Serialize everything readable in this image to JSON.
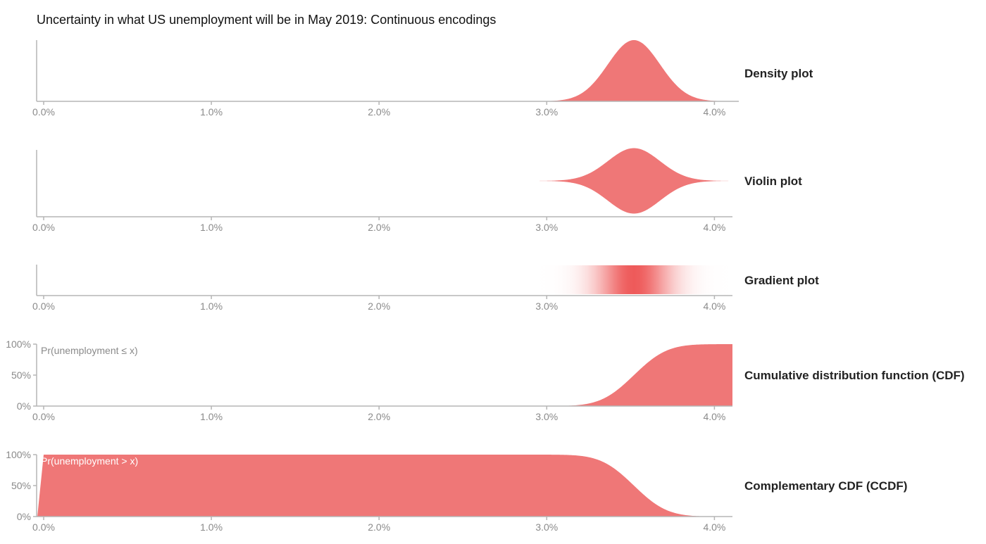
{
  "title": "Uncertainty in what US unemployment will be in May 2019: Continuous encodings",
  "colors": {
    "fill": "#ef7777",
    "gradient_peak": "#ee5a5a",
    "axis": "#b5b5b5",
    "tick_text": "#8a8a8a"
  },
  "chart_data": [
    {
      "type": "area",
      "encoding": "density",
      "label": "Density plot",
      "x_ticks": [
        0.0,
        1.0,
        2.0,
        3.0,
        4.0
      ],
      "x_tick_labels": [
        "0.0%",
        "1.0%",
        "2.0%",
        "3.0%",
        "4.0%"
      ],
      "xlim": [
        0.0,
        4.2
      ],
      "distribution": {
        "mean": 3.52,
        "sd": 0.155
      }
    },
    {
      "type": "area",
      "encoding": "violin",
      "label": "Violin plot",
      "x_ticks": [
        0.0,
        1.0,
        2.0,
        3.0,
        4.0
      ],
      "x_tick_labels": [
        "0.0%",
        "1.0%",
        "2.0%",
        "3.0%",
        "4.0%"
      ],
      "xlim": [
        0.0,
        4.2
      ],
      "distribution": {
        "mean": 3.52,
        "sd": 0.155
      }
    },
    {
      "type": "heatmap",
      "encoding": "gradient",
      "label": "Gradient plot",
      "x_ticks": [
        0.0,
        1.0,
        2.0,
        3.0,
        4.0
      ],
      "x_tick_labels": [
        "0.0%",
        "1.0%",
        "2.0%",
        "3.0%",
        "4.0%"
      ],
      "xlim": [
        0.0,
        4.2
      ],
      "distribution": {
        "mean": 3.52,
        "sd": 0.155
      }
    },
    {
      "type": "area",
      "encoding": "cdf",
      "label": "Cumulative distribution function (CDF)",
      "ylabel": "Pr(unemployment ≤ x)",
      "x_ticks": [
        0.0,
        1.0,
        2.0,
        3.0,
        4.0
      ],
      "x_tick_labels": [
        "0.0%",
        "1.0%",
        "2.0%",
        "3.0%",
        "4.0%"
      ],
      "y_ticks": [
        0,
        50,
        100
      ],
      "y_tick_labels": [
        "0%",
        "50%",
        "100%"
      ],
      "xlim": [
        0.0,
        4.2
      ],
      "ylim": [
        0,
        100
      ],
      "distribution": {
        "mean": 3.52,
        "sd": 0.155
      }
    },
    {
      "type": "area",
      "encoding": "ccdf",
      "label": "Complementary CDF (CCDF)",
      "ylabel": "Pr(unemployment > x)",
      "x_ticks": [
        0.0,
        1.0,
        2.0,
        3.0,
        4.0
      ],
      "x_tick_labels": [
        "0.0%",
        "1.0%",
        "2.0%",
        "3.0%",
        "4.0%"
      ],
      "y_ticks": [
        0,
        50,
        100
      ],
      "y_tick_labels": [
        "0%",
        "50%",
        "100%"
      ],
      "xlim": [
        0.0,
        4.2
      ],
      "ylim": [
        0,
        100
      ],
      "distribution": {
        "mean": 3.52,
        "sd": 0.155
      }
    }
  ]
}
